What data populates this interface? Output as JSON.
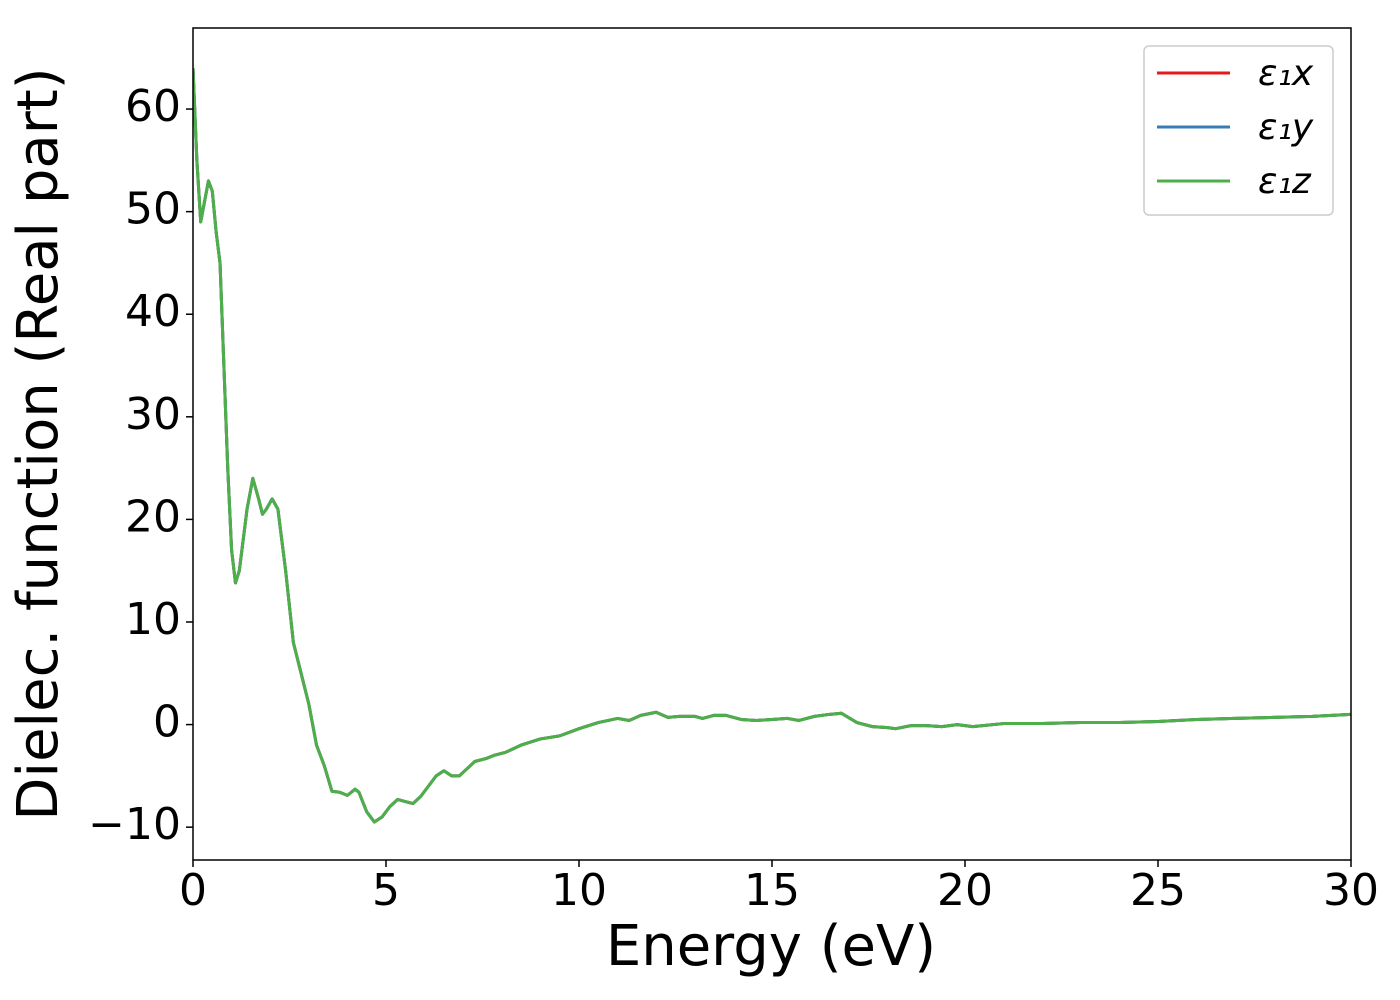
{
  "chart_data": {
    "type": "line",
    "xlabel": "Energy (eV)",
    "ylabel": "Dielec. function (Real part)",
    "x": [
      0,
      0.1,
      0.2,
      0.3,
      0.4,
      0.5,
      0.6,
      0.7,
      0.8,
      0.9,
      1.0,
      1.1,
      1.2,
      1.4,
      1.55,
      1.7,
      1.8,
      1.9,
      2.05,
      2.2,
      2.4,
      2.6,
      2.8,
      3.0,
      3.2,
      3.4,
      3.6,
      3.8,
      4.0,
      4.2,
      4.3,
      4.5,
      4.7,
      4.9,
      5.1,
      5.3,
      5.5,
      5.7,
      5.9,
      6.1,
      6.3,
      6.5,
      6.7,
      6.9,
      7.1,
      7.3,
      7.6,
      7.8,
      8.1,
      8.5,
      9.0,
      9.5,
      10.0,
      10.5,
      11.0,
      11.3,
      11.6,
      12.0,
      12.3,
      12.6,
      13.0,
      13.2,
      13.5,
      13.8,
      14.2,
      14.6,
      15.0,
      15.4,
      15.7,
      16.1,
      16.5,
      16.8,
      17.2,
      17.6,
      18.0,
      18.2,
      18.6,
      19.0,
      19.4,
      19.8,
      20.2,
      21,
      22,
      23,
      24,
      25,
      26,
      27,
      28,
      29,
      30
    ],
    "series": [
      {
        "name": "ε₁x",
        "color": "#e41a1c",
        "values": [
          64,
          55,
          49,
          51,
          53,
          52,
          48,
          45,
          35,
          25,
          17,
          13.8,
          15,
          21,
          24,
          22,
          20.5,
          21,
          22,
          21,
          15,
          8,
          5,
          2,
          -2,
          -4,
          -6.5,
          -6.6,
          -6.9,
          -6.3,
          -6.6,
          -8.5,
          -9.5,
          -9,
          -8,
          -7.3,
          -7.5,
          -7.7,
          -7,
          -6,
          -5,
          -4.5,
          -5,
          -5,
          -4.3,
          -3.6,
          -3.3,
          -3,
          -2.7,
          -2,
          -1.4,
          -1.1,
          -0.4,
          0.2,
          0.6,
          0.4,
          0.9,
          1.2,
          0.7,
          0.8,
          0.8,
          0.6,
          0.9,
          0.9,
          0.5,
          0.4,
          0.5,
          0.6,
          0.4,
          0.8,
          1.0,
          1.1,
          0.2,
          -0.2,
          -0.3,
          -0.4,
          -0.1,
          -0.1,
          -0.2,
          0,
          -0.2,
          0.1,
          0.1,
          0.2,
          0.2,
          0.3,
          0.5,
          0.6,
          0.7,
          0.8,
          1.0
        ]
      },
      {
        "name": "ε₁y",
        "color": "#377eb8",
        "values": [
          64,
          55,
          49,
          51,
          53,
          52,
          48,
          45,
          35,
          25,
          17,
          13.8,
          15,
          21,
          24,
          22,
          20.5,
          21,
          22,
          21,
          15,
          8,
          5,
          2,
          -2,
          -4,
          -6.5,
          -6.6,
          -6.9,
          -6.3,
          -6.6,
          -8.5,
          -9.5,
          -9,
          -8,
          -7.3,
          -7.5,
          -7.7,
          -7,
          -6,
          -5,
          -4.5,
          -5,
          -5,
          -4.3,
          -3.6,
          -3.3,
          -3,
          -2.7,
          -2,
          -1.4,
          -1.1,
          -0.4,
          0.2,
          0.6,
          0.4,
          0.9,
          1.2,
          0.7,
          0.8,
          0.8,
          0.6,
          0.9,
          0.9,
          0.5,
          0.4,
          0.5,
          0.6,
          0.4,
          0.8,
          1.0,
          1.1,
          0.2,
          -0.2,
          -0.3,
          -0.4,
          -0.1,
          -0.1,
          -0.2,
          0,
          -0.2,
          0.1,
          0.1,
          0.2,
          0.2,
          0.3,
          0.5,
          0.6,
          0.7,
          0.8,
          1.0
        ]
      },
      {
        "name": "ε₁z",
        "color": "#4daf4a",
        "values": [
          64,
          55,
          49,
          51,
          53,
          52,
          48,
          45,
          35,
          25,
          17,
          13.8,
          15,
          21,
          24,
          22,
          20.5,
          21,
          22,
          21,
          15,
          8,
          5,
          2,
          -2,
          -4,
          -6.5,
          -6.6,
          -6.9,
          -6.3,
          -6.6,
          -8.5,
          -9.5,
          -9,
          -8,
          -7.3,
          -7.5,
          -7.7,
          -7,
          -6,
          -5,
          -4.5,
          -5,
          -5,
          -4.3,
          -3.6,
          -3.3,
          -3,
          -2.7,
          -2,
          -1.4,
          -1.1,
          -0.4,
          0.2,
          0.6,
          0.4,
          0.9,
          1.2,
          0.7,
          0.8,
          0.8,
          0.6,
          0.9,
          0.9,
          0.5,
          0.4,
          0.5,
          0.6,
          0.4,
          0.8,
          1.0,
          1.1,
          0.2,
          -0.2,
          -0.3,
          -0.4,
          -0.1,
          -0.1,
          -0.2,
          0,
          -0.2,
          0.1,
          0.1,
          0.2,
          0.2,
          0.3,
          0.5,
          0.6,
          0.7,
          0.8,
          1.0
        ]
      }
    ],
    "xlim": [
      0,
      30
    ],
    "xticks": [
      0,
      5,
      10,
      15,
      20,
      25,
      30
    ],
    "ylim": [
      -13.2,
      67.9
    ],
    "yticks": [
      {
        "value": -10,
        "label": "−10"
      },
      0,
      10,
      20,
      30,
      40,
      50,
      60
    ],
    "grid": false,
    "legend": "upper right"
  }
}
